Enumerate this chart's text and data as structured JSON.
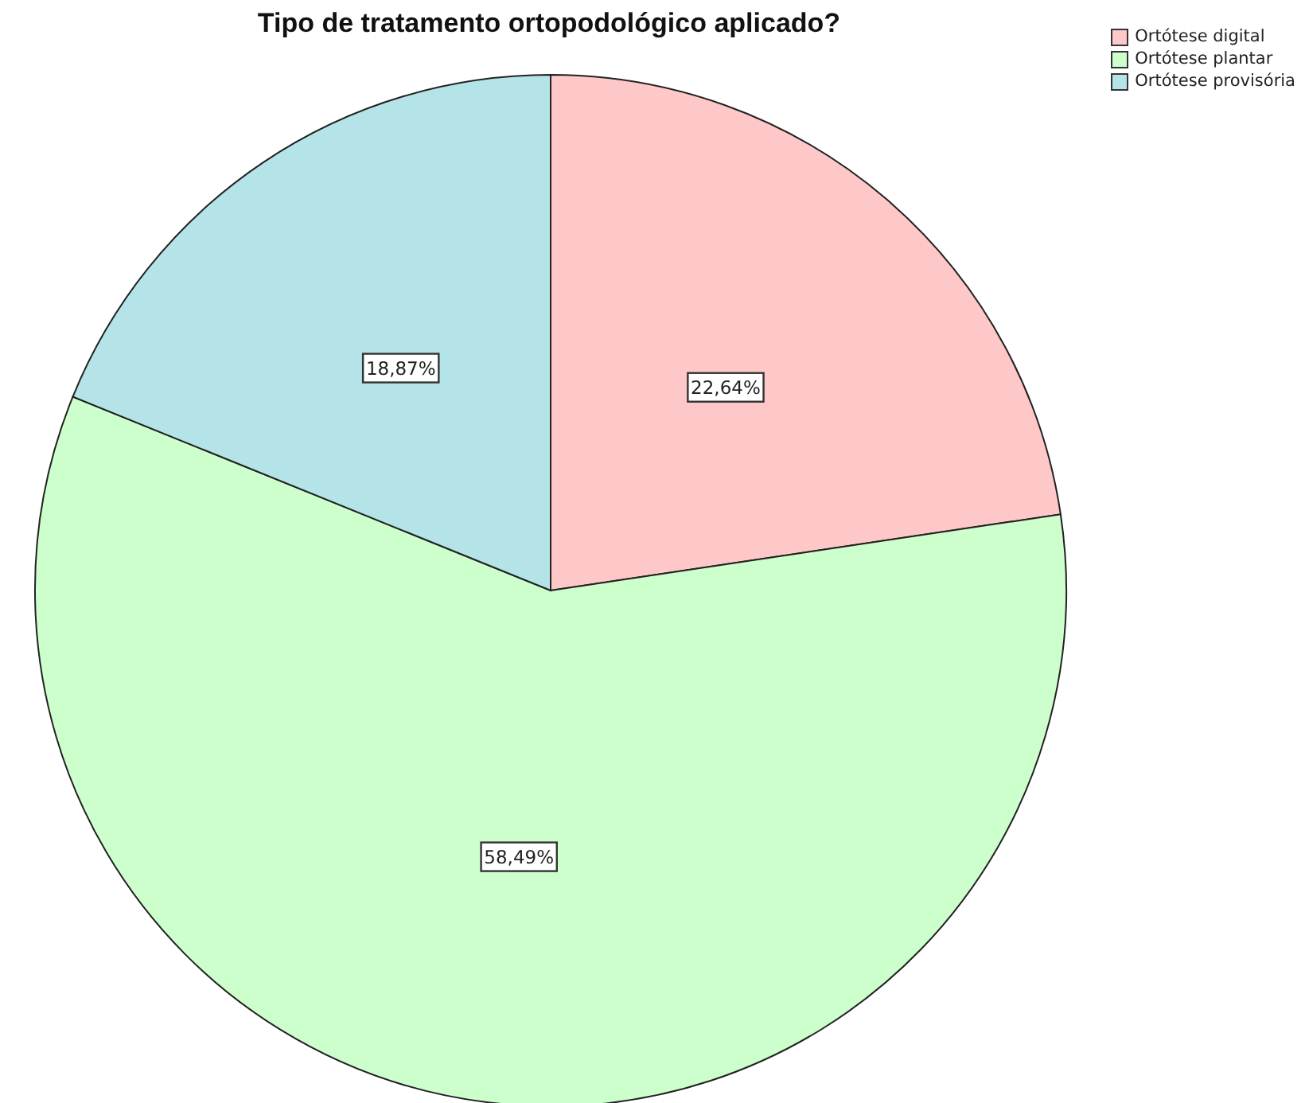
{
  "chart_data": {
    "type": "pie",
    "title": "Tipo de tratamento ortopodológico aplicado?",
    "categories": [
      "Ortótese digital",
      "Ortótese plantar",
      "Ortótese provisória"
    ],
    "values": [
      22.64,
      58.49,
      18.87
    ],
    "colors": [
      "#ffc8c8",
      "#ccffcc",
      "#b4e4e8"
    ],
    "value_labels": [
      "22,64%",
      "58,49%",
      "18,87%"
    ],
    "legend": "top right"
  }
}
